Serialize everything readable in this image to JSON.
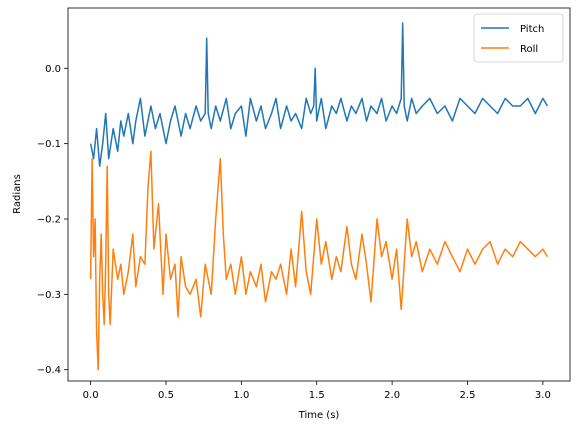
{
  "chart_data": {
    "type": "line",
    "xlabel": "Time (s)",
    "ylabel": "Radians",
    "xlim": [
      -0.15,
      3.18
    ],
    "ylim": [
      -0.415,
      0.08
    ],
    "xticks": [
      0.0,
      0.5,
      1.0,
      1.5,
      2.0,
      2.5,
      3.0
    ],
    "xtick_labels": [
      "0.0",
      "0.5",
      "1.0",
      "1.5",
      "2.0",
      "2.5",
      "3.0"
    ],
    "yticks": [
      0.0,
      -0.1,
      -0.2,
      -0.3,
      -0.4
    ],
    "ytick_labels": [
      "0.0",
      "−0.1",
      "−0.2",
      "−0.3",
      "−0.4"
    ],
    "grid": false,
    "legend_position": "top-right",
    "series": [
      {
        "name": "Pitch",
        "color": "#1f77b4",
        "x": [
          0.0,
          0.02,
          0.04,
          0.06,
          0.08,
          0.1,
          0.12,
          0.15,
          0.18,
          0.2,
          0.22,
          0.25,
          0.28,
          0.3,
          0.33,
          0.36,
          0.4,
          0.43,
          0.46,
          0.5,
          0.53,
          0.56,
          0.6,
          0.63,
          0.66,
          0.7,
          0.73,
          0.76,
          0.77,
          0.78,
          0.8,
          0.83,
          0.86,
          0.9,
          0.93,
          0.96,
          1.0,
          1.03,
          1.06,
          1.1,
          1.13,
          1.16,
          1.2,
          1.23,
          1.26,
          1.3,
          1.33,
          1.36,
          1.4,
          1.43,
          1.46,
          1.48,
          1.49,
          1.5,
          1.53,
          1.56,
          1.6,
          1.63,
          1.66,
          1.7,
          1.73,
          1.76,
          1.8,
          1.83,
          1.86,
          1.9,
          1.93,
          1.96,
          2.0,
          2.03,
          2.06,
          2.07,
          2.08,
          2.1,
          2.13,
          2.16,
          2.2,
          2.25,
          2.3,
          2.35,
          2.4,
          2.45,
          2.5,
          2.55,
          2.6,
          2.65,
          2.7,
          2.75,
          2.8,
          2.85,
          2.9,
          2.95,
          3.0,
          3.03
        ],
        "y": [
          -0.1,
          -0.12,
          -0.08,
          -0.13,
          -0.1,
          -0.06,
          -0.12,
          -0.08,
          -0.11,
          -0.07,
          -0.09,
          -0.06,
          -0.1,
          -0.07,
          -0.04,
          -0.09,
          -0.05,
          -0.08,
          -0.06,
          -0.1,
          -0.07,
          -0.05,
          -0.09,
          -0.06,
          -0.08,
          -0.05,
          -0.07,
          -0.06,
          0.04,
          -0.06,
          -0.08,
          -0.05,
          -0.07,
          -0.04,
          -0.08,
          -0.06,
          -0.05,
          -0.09,
          -0.04,
          -0.07,
          -0.05,
          -0.08,
          -0.06,
          -0.04,
          -0.08,
          -0.05,
          -0.07,
          -0.06,
          -0.08,
          -0.04,
          -0.06,
          -0.05,
          0.0,
          -0.07,
          -0.04,
          -0.08,
          -0.05,
          -0.06,
          -0.04,
          -0.07,
          -0.05,
          -0.06,
          -0.04,
          -0.07,
          -0.05,
          -0.06,
          -0.04,
          -0.07,
          -0.05,
          -0.06,
          -0.04,
          0.06,
          -0.05,
          -0.07,
          -0.04,
          -0.06,
          -0.05,
          -0.04,
          -0.06,
          -0.05,
          -0.07,
          -0.04,
          -0.05,
          -0.06,
          -0.04,
          -0.05,
          -0.06,
          -0.04,
          -0.05,
          -0.05,
          -0.04,
          -0.06,
          -0.04,
          -0.05
        ]
      },
      {
        "name": "Roll",
        "color": "#ff7f0e",
        "x": [
          0.0,
          0.01,
          0.02,
          0.03,
          0.04,
          0.05,
          0.06,
          0.07,
          0.08,
          0.09,
          0.1,
          0.11,
          0.12,
          0.13,
          0.15,
          0.18,
          0.2,
          0.22,
          0.25,
          0.28,
          0.3,
          0.33,
          0.36,
          0.38,
          0.4,
          0.42,
          0.45,
          0.48,
          0.5,
          0.53,
          0.56,
          0.58,
          0.6,
          0.63,
          0.66,
          0.7,
          0.73,
          0.76,
          0.8,
          0.83,
          0.86,
          0.88,
          0.9,
          0.93,
          0.96,
          1.0,
          1.03,
          1.06,
          1.1,
          1.13,
          1.16,
          1.2,
          1.23,
          1.26,
          1.3,
          1.33,
          1.36,
          1.4,
          1.43,
          1.46,
          1.5,
          1.53,
          1.56,
          1.6,
          1.63,
          1.66,
          1.7,
          1.73,
          1.76,
          1.8,
          1.83,
          1.86,
          1.9,
          1.93,
          1.96,
          2.0,
          2.03,
          2.06,
          2.1,
          2.13,
          2.16,
          2.2,
          2.25,
          2.3,
          2.35,
          2.4,
          2.45,
          2.5,
          2.55,
          2.6,
          2.65,
          2.7,
          2.75,
          2.8,
          2.85,
          2.9,
          2.95,
          3.0,
          3.03
        ],
        "y": [
          -0.28,
          -0.12,
          -0.25,
          -0.2,
          -0.35,
          -0.4,
          -0.28,
          -0.22,
          -0.3,
          -0.34,
          -0.26,
          -0.13,
          -0.3,
          -0.34,
          -0.24,
          -0.28,
          -0.26,
          -0.3,
          -0.27,
          -0.22,
          -0.29,
          -0.25,
          -0.26,
          -0.16,
          -0.11,
          -0.24,
          -0.18,
          -0.3,
          -0.22,
          -0.28,
          -0.26,
          -0.33,
          -0.25,
          -0.29,
          -0.3,
          -0.28,
          -0.33,
          -0.26,
          -0.3,
          -0.2,
          -0.12,
          -0.22,
          -0.28,
          -0.26,
          -0.3,
          -0.25,
          -0.3,
          -0.27,
          -0.29,
          -0.26,
          -0.31,
          -0.27,
          -0.28,
          -0.26,
          -0.3,
          -0.24,
          -0.29,
          -0.19,
          -0.27,
          -0.3,
          -0.2,
          -0.26,
          -0.23,
          -0.28,
          -0.25,
          -0.27,
          -0.21,
          -0.26,
          -0.28,
          -0.22,
          -0.26,
          -0.31,
          -0.2,
          -0.25,
          -0.23,
          -0.28,
          -0.24,
          -0.32,
          -0.2,
          -0.25,
          -0.23,
          -0.27,
          -0.24,
          -0.26,
          -0.23,
          -0.25,
          -0.27,
          -0.24,
          -0.26,
          -0.24,
          -0.23,
          -0.26,
          -0.24,
          -0.25,
          -0.23,
          -0.24,
          -0.25,
          -0.24,
          -0.25
        ]
      }
    ]
  }
}
